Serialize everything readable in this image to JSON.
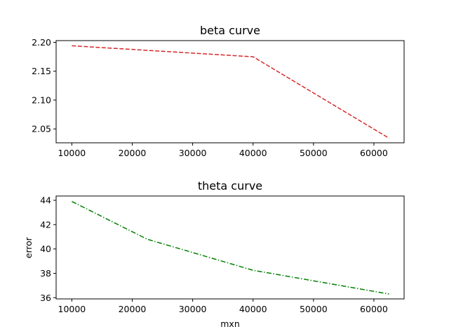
{
  "chart_data": [
    {
      "type": "line",
      "title": "beta curve",
      "xlabel": "",
      "ylabel": "",
      "xlim": [
        7400,
        65000
      ],
      "ylim": [
        2.026,
        2.203
      ],
      "xticks": [
        10000,
        20000,
        30000,
        40000,
        50000,
        60000
      ],
      "xtick_labels": [
        "10000",
        "20000",
        "30000",
        "40000",
        "50000",
        "60000"
      ],
      "yticks": [
        2.05,
        2.1,
        2.15,
        2.2
      ],
      "ytick_labels": [
        "2.05",
        "2.10",
        "2.15",
        "2.20"
      ],
      "grid": false,
      "series": [
        {
          "color": "#d62728",
          "linestyle": "dashed",
          "x": [
            10000,
            40000,
            62500
          ],
          "y": [
            2.194,
            2.175,
            2.034
          ]
        }
      ]
    },
    {
      "type": "line",
      "title": "theta curve",
      "xlabel": "mxn",
      "ylabel": "error",
      "xlim": [
        7400,
        65000
      ],
      "ylim": [
        35.9,
        44.35
      ],
      "xticks": [
        10000,
        20000,
        30000,
        40000,
        50000,
        60000
      ],
      "xtick_labels": [
        "10000",
        "20000",
        "30000",
        "40000",
        "50000",
        "60000"
      ],
      "yticks": [
        36,
        38,
        40,
        42,
        44
      ],
      "ytick_labels": [
        "36",
        "38",
        "40",
        "42",
        "44"
      ],
      "grid": false,
      "series": [
        {
          "color": "#008000",
          "linestyle": "dashdot",
          "x": [
            10000,
            22500,
            40000,
            62500
          ],
          "y": [
            43.9,
            40.8,
            38.25,
            36.3
          ]
        }
      ]
    }
  ]
}
